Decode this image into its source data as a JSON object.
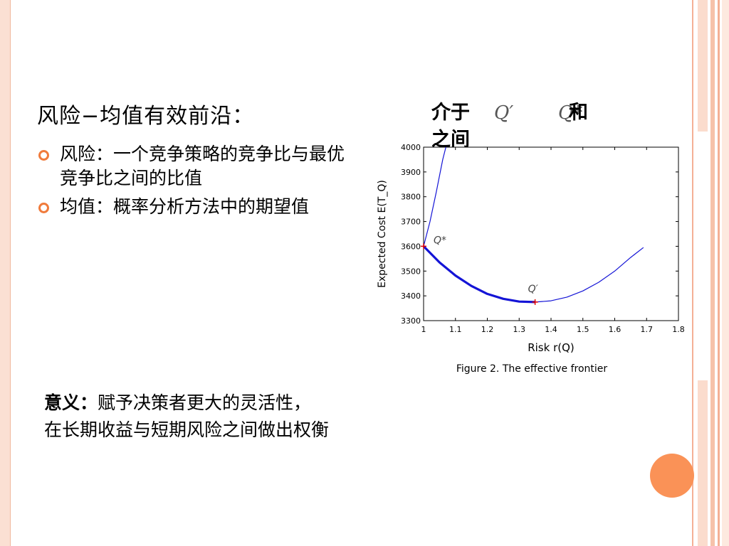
{
  "slide": {
    "title": "风险−均值有效前沿：",
    "bullets": [
      "风险：一个竞争策略的竞争比与最优竞争比之间的比值",
      "均值：概率分析方法中的期望值"
    ],
    "meaning_bold": "意义：",
    "meaning_line1": "赋予决策者更大的灵活性，",
    "meaning_line2": "在长期收益与短期风险之间做出权衡",
    "between_prefix": "介于",
    "between_q1": "Q′",
    "between_q2": "Q*",
    "between_and": "和",
    "between_line2": "之间"
  },
  "colors": {
    "accent": "#f07b3c",
    "curve": "#1414d6",
    "marker": "#e00000"
  },
  "chart_data": {
    "type": "line",
    "xlabel": "Risk  r(Q)",
    "ylabel": "Expected Cost  E(T_Q)",
    "caption": "Figure 2. The effective frontier",
    "xlim": [
      1,
      1.8
    ],
    "ylim": [
      3300,
      4000
    ],
    "xticks": [
      "1",
      "1.1",
      "1.2",
      "1.3",
      "1.4",
      "1.5",
      "1.6",
      "1.7",
      "1.8"
    ],
    "yticks": [
      "3300",
      "3400",
      "3500",
      "3600",
      "3700",
      "3800",
      "3900",
      "4000"
    ],
    "series": [
      {
        "x": [
          1.0,
          1.02,
          1.04,
          1.06,
          1.07
        ],
        "y": [
          3600,
          3700,
          3820,
          3950,
          4000
        ]
      },
      {
        "x": [
          1.0,
          1.05,
          1.1,
          1.15,
          1.2,
          1.25,
          1.3,
          1.35
        ],
        "y": [
          3600,
          3535,
          3482,
          3440,
          3408,
          3388,
          3377,
          3375
        ]
      },
      {
        "x": [
          1.35,
          1.4,
          1.45,
          1.5,
          1.55,
          1.6,
          1.65,
          1.69
        ],
        "y": [
          3375,
          3380,
          3395,
          3420,
          3455,
          3500,
          3555,
          3595
        ]
      }
    ],
    "points": [
      {
        "label": "Q*",
        "x": 1.0,
        "y": 3600
      },
      {
        "label": "Q′",
        "x": 1.35,
        "y": 3375
      }
    ]
  }
}
